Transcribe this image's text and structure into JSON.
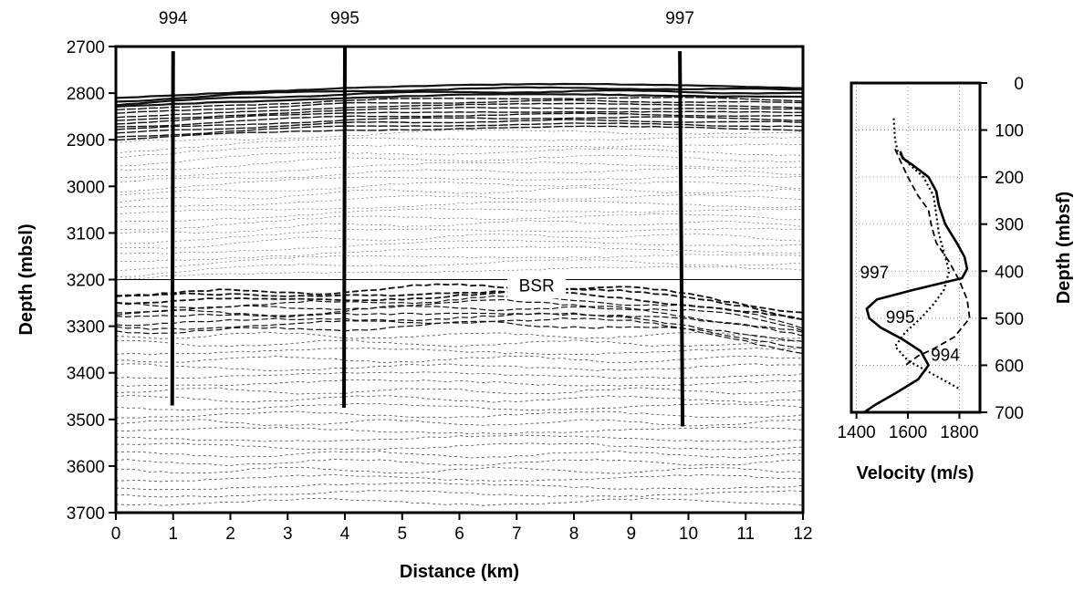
{
  "chart_data": [
    {
      "type": "seismic-section",
      "xlabel": "Distance (km)",
      "ylabel": "Depth (mbsl)",
      "xlim": [
        0,
        12
      ],
      "ylim": [
        3700,
        2700
      ],
      "x_ticks": [
        "0",
        "1",
        "2",
        "3",
        "4",
        "5",
        "6",
        "7",
        "8",
        "9",
        "10",
        "11",
        "12"
      ],
      "y_ticks": [
        "2700",
        "2800",
        "2900",
        "3000",
        "3100",
        "3200",
        "3300",
        "3400",
        "3500",
        "3600",
        "3700"
      ],
      "wells": [
        {
          "name": "994",
          "x": 1.0,
          "top": 2710,
          "bottom": 3470
        },
        {
          "name": "995",
          "x": 4.0,
          "top": 2700,
          "bottom": 3475
        },
        {
          "name": "997",
          "x": 9.85,
          "top": 2710,
          "bottom": 3515
        }
      ],
      "annotation": {
        "text": "BSR",
        "x": 7.35,
        "depth": 3225
      },
      "reference_line_depth": 3200,
      "seafloor": {
        "x": [
          0,
          2,
          4,
          6,
          8,
          10,
          12
        ],
        "depth": [
          2810,
          2797,
          2788,
          2784,
          2782,
          2783,
          2787
        ]
      },
      "bsr": {
        "x": [
          3,
          4,
          5,
          6,
          7,
          8,
          9,
          10,
          11,
          12
        ],
        "depth": [
          3228,
          3222,
          3218,
          3215,
          3214,
          3216,
          3222,
          3232,
          3248,
          3272
        ]
      },
      "grid": false
    },
    {
      "type": "line",
      "xlabel": "Velocity (m/s)",
      "ylabel": "Depth (mbsf)",
      "xlim": [
        1380,
        1880
      ],
      "ylim": [
        700,
        0
      ],
      "x_ticks": [
        "1400",
        "1600",
        "1800"
      ],
      "y_ticks": [
        "0",
        "100",
        "200",
        "300",
        "400",
        "500",
        "600",
        "700"
      ],
      "series": [
        {
          "name": "997",
          "style": "solid",
          "depth": [
            145,
            160,
            175,
            200,
            230,
            260,
            300,
            340,
            370,
            395,
            415,
            440,
            460,
            480,
            500,
            520,
            545,
            570,
            600,
            630,
            660,
            685,
            700
          ],
          "velocity": [
            1570,
            1580,
            1620,
            1680,
            1710,
            1720,
            1745,
            1790,
            1820,
            1830,
            1810,
            1620,
            1480,
            1440,
            1450,
            1495,
            1580,
            1650,
            1680,
            1640,
            1550,
            1470,
            1430
          ]
        },
        {
          "name": "995",
          "style": "dashed",
          "depth": [
            140,
            165,
            200,
            240,
            270,
            300,
            340,
            380,
            420,
            460,
            500,
            540,
            565,
            580,
            600
          ],
          "velocity": [
            1550,
            1570,
            1600,
            1640,
            1680,
            1690,
            1710,
            1760,
            1800,
            1830,
            1840,
            1780,
            1700,
            1640,
            1590
          ]
        },
        {
          "name": "994",
          "style": "dotted",
          "depth": [
            75,
            120,
            145,
            170,
            200,
            240,
            280,
            320,
            360,
            400,
            440,
            470,
            500,
            530,
            560,
            590,
            620,
            650
          ],
          "velocity": [
            1545,
            1550,
            1560,
            1600,
            1660,
            1700,
            1710,
            1720,
            1740,
            1760,
            1740,
            1700,
            1650,
            1590,
            1550,
            1600,
            1700,
            1800
          ]
        }
      ],
      "series_labels": [
        {
          "text": "997",
          "v": 1470,
          "d": 415
        },
        {
          "text": "995",
          "v": 1570,
          "d": 510
        },
        {
          "text": "994",
          "v": 1745,
          "d": 590
        }
      ],
      "grid": true
    }
  ]
}
